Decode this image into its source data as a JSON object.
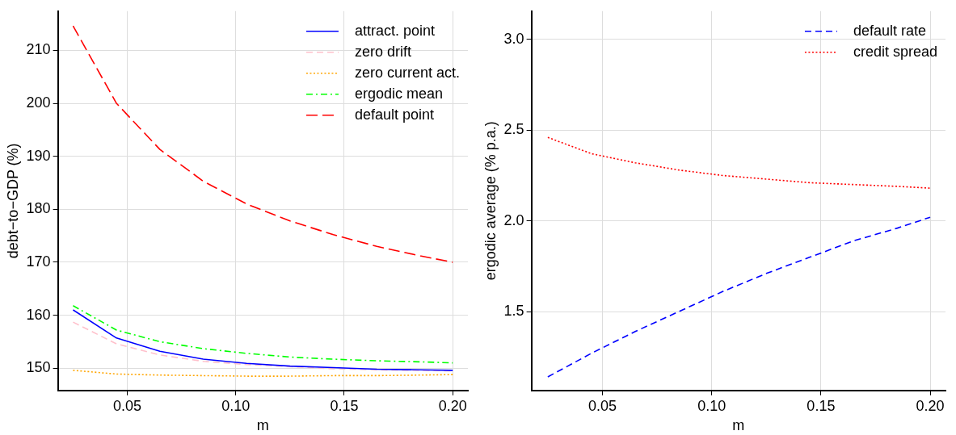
{
  "chart_data": [
    {
      "type": "line",
      "xlabel": "m",
      "ylabel": "debt−to−GDP (%)",
      "x": [
        0.025,
        0.045,
        0.065,
        0.085,
        0.105,
        0.125,
        0.145,
        0.165,
        0.185,
        0.2
      ],
      "xlim": [
        0.018,
        0.207
      ],
      "xticks": [
        {
          "value": 0.05,
          "label": "0.05"
        },
        {
          "value": 0.1,
          "label": "0.10"
        },
        {
          "value": 0.15,
          "label": "0.15"
        },
        {
          "value": 0.2,
          "label": "0.20"
        }
      ],
      "ylim": [
        145.8,
        217.4
      ],
      "yticks": [
        150,
        160,
        170,
        180,
        190,
        200,
        210
      ],
      "grid": true,
      "legend": "top right",
      "marker": "none",
      "series": [
        {
          "name": "attract. point",
          "color": "#0000ff",
          "line_style": "solid",
          "values": [
            161.0,
            155.7,
            153.2,
            151.7,
            150.9,
            150.4,
            150.1,
            149.8,
            149.7,
            149.6
          ]
        },
        {
          "name": "zero drift",
          "color": "#ffc0cb",
          "line_style": "dashed",
          "values": [
            158.7,
            154.6,
            152.5,
            151.3,
            150.7,
            150.3,
            149.9,
            149.7,
            149.6,
            149.5
          ]
        },
        {
          "name": "zero current act.",
          "color": "#ffa500",
          "line_style": "dotted",
          "values": [
            149.6,
            148.9,
            148.7,
            148.6,
            148.5,
            148.5,
            148.6,
            148.6,
            148.7,
            148.8
          ]
        },
        {
          "name": "ergodic mean",
          "color": "#00ff00",
          "line_style": "dashdot",
          "values": [
            161.8,
            157.2,
            155.0,
            153.7,
            152.8,
            152.1,
            151.7,
            151.4,
            151.2,
            151.0
          ]
        },
        {
          "name": "default point",
          "color": "#ff0000",
          "line_style": "longdash",
          "values": [
            214.6,
            200.0,
            191.3,
            185.3,
            181.0,
            177.8,
            175.2,
            173.0,
            171.2,
            170.0
          ]
        }
      ]
    },
    {
      "type": "line",
      "xlabel": "m",
      "ylabel": "ergodic average (% p.a.)",
      "x": [
        0.025,
        0.045,
        0.065,
        0.085,
        0.105,
        0.125,
        0.145,
        0.165,
        0.185,
        0.2
      ],
      "xlim": [
        0.0175,
        0.207
      ],
      "xticks": [
        {
          "value": 0.05,
          "label": "0.05"
        },
        {
          "value": 0.1,
          "label": "0.10"
        },
        {
          "value": 0.15,
          "label": "0.15"
        },
        {
          "value": 0.2,
          "label": "0.20"
        }
      ],
      "ylim": [
        1.065,
        3.156
      ],
      "yticks": [
        {
          "value": 1.5,
          "label": "1.5"
        },
        {
          "value": 2,
          "label": "2.0"
        },
        {
          "value": 2.5,
          "label": "2.5"
        },
        {
          "value": 3,
          "label": "3.0"
        }
      ],
      "grid": true,
      "legend": "top right",
      "marker": "none",
      "series": [
        {
          "name": "default rate",
          "color": "#0000ff",
          "line_style": "dashed",
          "values": [
            1.14,
            1.27,
            1.39,
            1.5,
            1.61,
            1.71,
            1.8,
            1.89,
            1.96,
            2.02
          ]
        },
        {
          "name": "credit spread",
          "color": "#ff0000",
          "line_style": "dotted",
          "values": [
            2.46,
            2.37,
            2.32,
            2.28,
            2.25,
            2.23,
            2.21,
            2.2,
            2.19,
            2.18
          ]
        }
      ]
    }
  ]
}
